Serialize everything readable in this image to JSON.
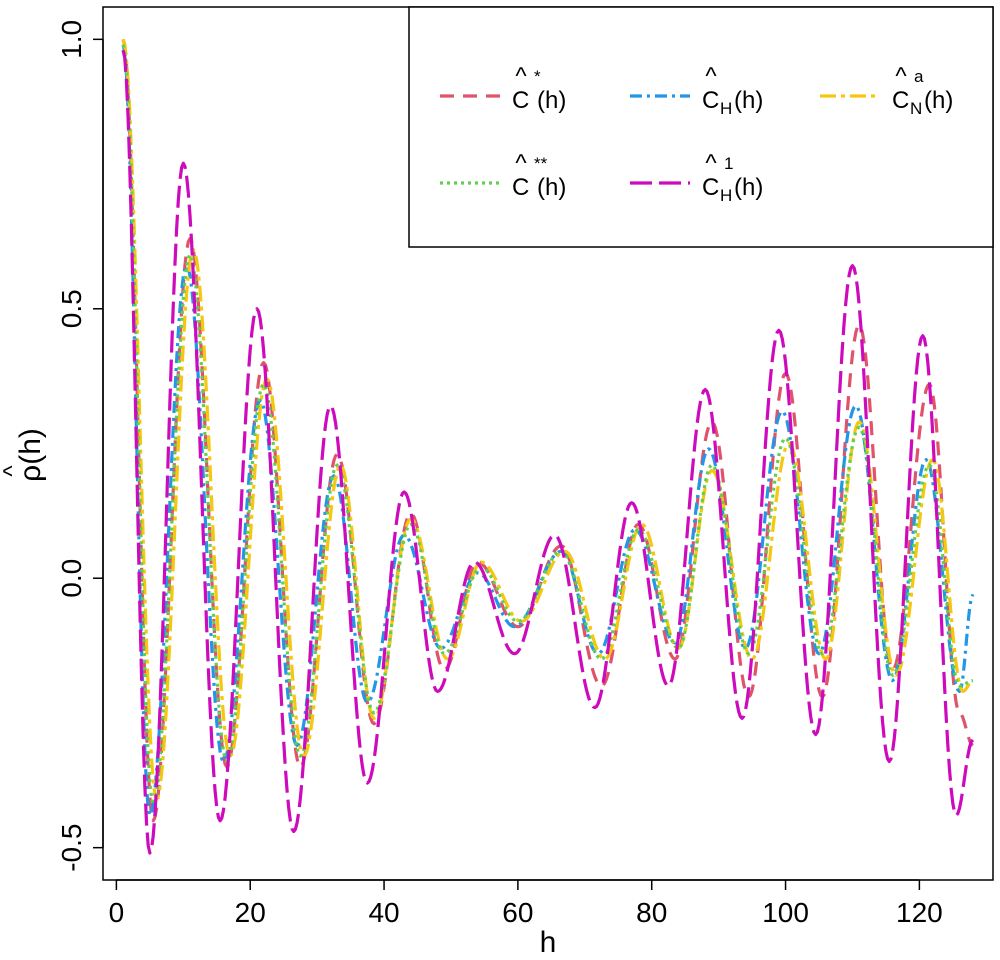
{
  "chart_data": {
    "type": "line",
    "xlabel": "h",
    "ylabel": "ρ̂(h)",
    "ylabel_base": "ρ",
    "ylabel_hat": "^",
    "ylabel_arg": "(h)",
    "xlim": [
      -2,
      131
    ],
    "ylim": [
      -0.56,
      1.06
    ],
    "xticks": [
      0,
      20,
      40,
      60,
      80,
      100,
      120
    ],
    "xtick_labels": [
      "0",
      "20",
      "40",
      "60",
      "80",
      "100",
      "120"
    ],
    "yticks": [
      -0.5,
      0.0,
      0.5,
      1.0
    ],
    "ytick_labels": [
      "-0.5",
      "0.0",
      "0.5",
      "1.0"
    ],
    "grid": false,
    "legend_position": "top-right",
    "series": [
      {
        "key": "cstar",
        "legend_base": "C",
        "legend_hat": "^",
        "legend_sup": "*",
        "legend_sub": "",
        "legend_arg": "(h)",
        "color": "#DF536B",
        "dash": "14 9",
        "peaks": [
          [
            1,
            1.0
          ],
          [
            5.5,
            -0.45
          ],
          [
            11,
            0.63
          ],
          [
            16.5,
            -0.35
          ],
          [
            22,
            0.4
          ],
          [
            27.5,
            -0.35
          ],
          [
            33,
            0.23
          ],
          [
            38.5,
            -0.27
          ],
          [
            44,
            0.12
          ],
          [
            49,
            -0.17
          ],
          [
            54,
            0.03
          ],
          [
            60,
            -0.09
          ],
          [
            66.5,
            0.06
          ],
          [
            72.5,
            -0.2
          ],
          [
            78,
            0.1
          ],
          [
            83.5,
            -0.15
          ],
          [
            89,
            0.29
          ],
          [
            94.5,
            -0.22
          ],
          [
            100,
            0.38
          ],
          [
            105.5,
            -0.22
          ],
          [
            111,
            0.47
          ],
          [
            116,
            -0.17
          ],
          [
            121.5,
            0.36
          ],
          [
            126,
            -0.25
          ],
          [
            128,
            -0.31
          ]
        ]
      },
      {
        "key": "ch",
        "legend_base": "C",
        "legend_hat": "^",
        "legend_sup": "",
        "legend_sub": "H",
        "legend_arg": "(h)",
        "color": "#2297E6",
        "dash": "12 5 3 5",
        "peaks": [
          [
            1,
            0.99
          ],
          [
            5,
            -0.44
          ],
          [
            10.5,
            0.58
          ],
          [
            16,
            -0.34
          ],
          [
            21.5,
            0.33
          ],
          [
            27,
            -0.31
          ],
          [
            32.5,
            0.19
          ],
          [
            37.5,
            -0.23
          ],
          [
            43,
            0.08
          ],
          [
            48.5,
            -0.13
          ],
          [
            54,
            0.01
          ],
          [
            59.5,
            -0.09
          ],
          [
            66.5,
            0.05
          ],
          [
            72,
            -0.14
          ],
          [
            77.5,
            0.09
          ],
          [
            83.5,
            -0.12
          ],
          [
            88.5,
            0.24
          ],
          [
            94,
            -0.13
          ],
          [
            99.5,
            0.31
          ],
          [
            105,
            -0.14
          ],
          [
            110.5,
            0.32
          ],
          [
            116,
            -0.19
          ],
          [
            121,
            0.22
          ],
          [
            126,
            -0.21
          ],
          [
            128,
            -0.03
          ]
        ]
      },
      {
        "key": "cna",
        "legend_base": "C",
        "legend_hat": "^",
        "legend_sup": "a",
        "legend_sub": "N",
        "legend_arg": "(h)",
        "color": "#F5C710",
        "dash": "16 5 4 5",
        "peaks": [
          [
            1,
            1.0
          ],
          [
            6,
            -0.41
          ],
          [
            11.5,
            0.61
          ],
          [
            17,
            -0.33
          ],
          [
            22.5,
            0.37
          ],
          [
            28,
            -0.33
          ],
          [
            33.5,
            0.21
          ],
          [
            38.5,
            -0.26
          ],
          [
            44,
            0.11
          ],
          [
            49.5,
            -0.15
          ],
          [
            54.5,
            0.03
          ],
          [
            60.5,
            -0.08
          ],
          [
            67,
            0.05
          ],
          [
            73,
            -0.15
          ],
          [
            78.5,
            0.1
          ],
          [
            84,
            -0.13
          ],
          [
            89,
            0.2
          ],
          [
            95,
            -0.15
          ],
          [
            100.5,
            0.25
          ],
          [
            106,
            -0.15
          ],
          [
            111,
            0.29
          ],
          [
            116.5,
            -0.18
          ],
          [
            122,
            0.22
          ],
          [
            126.5,
            -0.21
          ],
          [
            128,
            -0.19
          ]
        ]
      },
      {
        "key": "cstarstar",
        "legend_base": "C",
        "legend_hat": "^",
        "legend_sup": "**",
        "legend_sub": "",
        "legend_arg": "(h)",
        "color": "#61D04F",
        "dash": "3 4",
        "peaks": [
          [
            1,
            0.99
          ],
          [
            5.5,
            -0.42
          ],
          [
            11,
            0.6
          ],
          [
            16.5,
            -0.34
          ],
          [
            22,
            0.36
          ],
          [
            27.5,
            -0.33
          ],
          [
            33,
            0.21
          ],
          [
            38.5,
            -0.25
          ],
          [
            44,
            0.1
          ],
          [
            49,
            -0.14
          ],
          [
            54.5,
            0.02
          ],
          [
            60,
            -0.08
          ],
          [
            66.5,
            0.05
          ],
          [
            72.5,
            -0.15
          ],
          [
            78,
            0.09
          ],
          [
            84,
            -0.13
          ],
          [
            89,
            0.21
          ],
          [
            94.5,
            -0.14
          ],
          [
            100,
            0.26
          ],
          [
            105.5,
            -0.14
          ],
          [
            111,
            0.28
          ],
          [
            116,
            -0.18
          ],
          [
            121.5,
            0.21
          ],
          [
            126,
            -0.2
          ],
          [
            128,
            -0.19
          ]
        ]
      },
      {
        "key": "ch1",
        "legend_base": "C",
        "legend_hat": "^",
        "legend_sup": "1",
        "legend_sub": "H",
        "legend_arg": "(h)",
        "color": "#CD0BBC",
        "dash": "22 7",
        "peaks": [
          [
            1,
            0.98
          ],
          [
            5,
            -0.51
          ],
          [
            10,
            0.77
          ],
          [
            15.5,
            -0.45
          ],
          [
            21,
            0.5
          ],
          [
            26.5,
            -0.47
          ],
          [
            32,
            0.32
          ],
          [
            37.5,
            -0.38
          ],
          [
            43,
            0.16
          ],
          [
            48,
            -0.21
          ],
          [
            53.5,
            0.03
          ],
          [
            59.5,
            -0.14
          ],
          [
            65.5,
            0.08
          ],
          [
            71.5,
            -0.24
          ],
          [
            77,
            0.14
          ],
          [
            82.5,
            -0.2
          ],
          [
            88,
            0.35
          ],
          [
            93.5,
            -0.26
          ],
          [
            99,
            0.46
          ],
          [
            104.5,
            -0.29
          ],
          [
            110,
            0.58
          ],
          [
            115.5,
            -0.34
          ],
          [
            120.5,
            0.45
          ],
          [
            125.5,
            -0.44
          ],
          [
            128,
            -0.3
          ]
        ]
      }
    ]
  }
}
